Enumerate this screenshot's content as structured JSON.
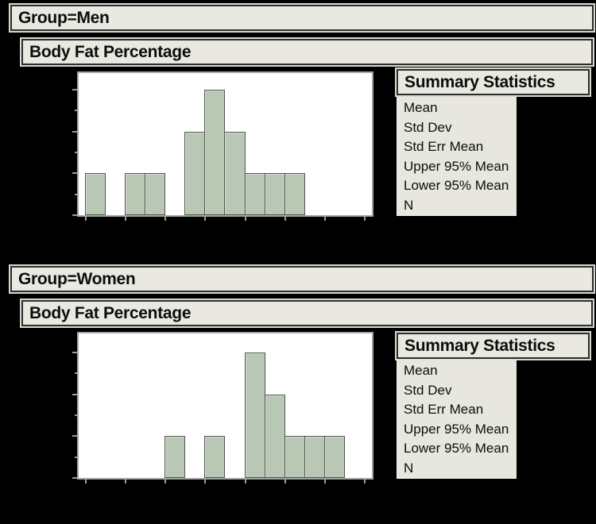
{
  "colors": {
    "page_background": "#000000",
    "panel_fill": "#e9e8e1",
    "panel_border_dark": "#2e2e29",
    "panel_outline_light": "#d9d8d0",
    "plot_background": "#ffffff",
    "plot_frame": "#a6a6a6",
    "bar_fill": "#b9c8b4",
    "bar_border": "#51564e",
    "tick": "#9b9b9b",
    "text": "#0d0d0d"
  },
  "sections": [
    {
      "group_label": "Group=Men",
      "panel_title": "Body Fat Percentage",
      "summary": {
        "title": "Summary Statistics",
        "rows": [
          "Mean",
          "Std Dev",
          "Std Err Mean",
          "Upper 95% Mean",
          "Lower 95% Mean",
          "N"
        ]
      }
    },
    {
      "group_label": "Group=Women",
      "panel_title": "Body Fat Percentage",
      "summary": {
        "title": "Summary Statistics",
        "rows": [
          "Mean",
          "Std Dev",
          "Std Err Mean",
          "Upper 95% Mean",
          "Lower 95% Mean",
          "N"
        ]
      }
    }
  ],
  "chart_data": [
    {
      "type": "histogram",
      "group": "Men",
      "title": "Body Fat Percentage",
      "bins": 14,
      "bin_counts": [
        1,
        0,
        1,
        1,
        0,
        2,
        3,
        2,
        1,
        1,
        1,
        0,
        0,
        0
      ],
      "ylim": [
        0,
        3.4
      ],
      "y_major_ticks": [
        0,
        1,
        2,
        3
      ],
      "y_minor_ticks": [
        0.5,
        1.5,
        2.5
      ],
      "x_ticks_every_bins": 2,
      "axis_tick_labels_visible": false,
      "grid": false,
      "legend": false
    },
    {
      "type": "histogram",
      "group": "Women",
      "title": "Body Fat Percentage",
      "bins": 14,
      "bin_counts": [
        0,
        0,
        0,
        0,
        1,
        0,
        1,
        0,
        3,
        2,
        1,
        1,
        1,
        0
      ],
      "ylim": [
        0,
        3.4
      ],
      "y_major_ticks": [
        0,
        1,
        2,
        3
      ],
      "y_minor_ticks": [
        0.5,
        1.5,
        2.5
      ],
      "x_ticks_every_bins": 2,
      "axis_tick_labels_visible": false,
      "grid": false,
      "legend": false
    }
  ]
}
